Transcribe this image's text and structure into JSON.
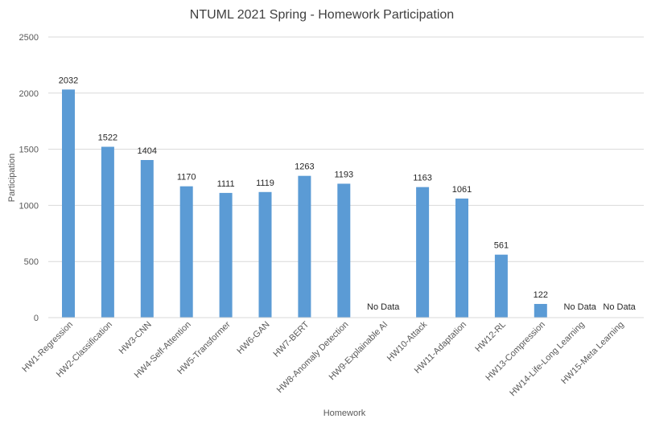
{
  "chart_data": {
    "type": "bar",
    "title": "NTUML 2021 Spring - Homework Participation",
    "xlabel": "Homework",
    "ylabel": "Participation",
    "ylim": [
      0,
      2500
    ],
    "yticks": [
      0,
      500,
      1000,
      1500,
      2000,
      2500
    ],
    "grid": true,
    "bar_color": "#5b9bd5",
    "grid_color": "#d9d9d9",
    "missing_label": "No Data",
    "categories": [
      "HW1-Regression",
      "HW2-Classification",
      "HW3-CNN",
      "HW4-Self-Attention",
      "HW5-Transformer",
      "HW6-GAN",
      "HW7-BERT",
      "HW8-Anomaly Detection",
      "HW9-Explainable AI",
      "HW10-Attack",
      "HW11-Adaptation",
      "HW12-RL",
      "HW13-Compression",
      "HW14-Life-Long Learning",
      "HW15-Meta Learning"
    ],
    "values": [
      2032,
      1522,
      1404,
      1170,
      1111,
      1119,
      1263,
      1193,
      null,
      1163,
      1061,
      561,
      122,
      null,
      null
    ]
  }
}
